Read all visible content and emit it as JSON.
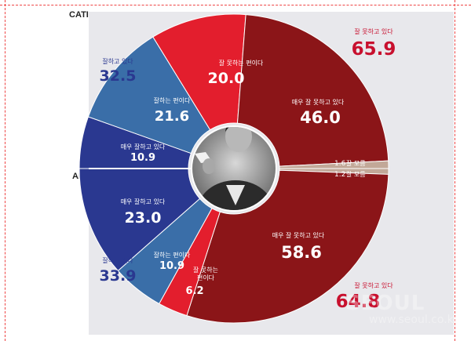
{
  "sections": {
    "top": "CATI",
    "bottom": "ARS"
  },
  "colors": {
    "darkred": "#8b1518",
    "red": "#e31e2d",
    "navy": "#2a3890",
    "blue": "#3a6ea8",
    "beige": "#c2a898",
    "panel": "#e8e8ec"
  },
  "chart_data": {
    "type": "pie",
    "charts": [
      {
        "survey": "CATI",
        "segments": [
          {
            "label": "매우 잘 못하고 있다",
            "value": 46.0,
            "color": "darkred"
          },
          {
            "label": "잘 못하는 편이다",
            "value": 20.0,
            "color": "red"
          },
          {
            "label": "잘하는 편이다",
            "value": 21.6,
            "color": "blue"
          },
          {
            "label": "매우 잘하고 있다",
            "value": 10.9,
            "color": "navy"
          },
          {
            "label": "잘 모름",
            "value": 1.6,
            "color": "beige"
          }
        ],
        "totals": [
          {
            "label": "잘 못하고 있다",
            "value": "65.9"
          },
          {
            "label": "잘하고 있다",
            "value": "32.5"
          }
        ]
      },
      {
        "survey": "ARS",
        "segments": [
          {
            "label": "매우 잘하고 있다",
            "value": 23.0,
            "color": "navy"
          },
          {
            "label": "잘하는 편이다",
            "value": 10.9,
            "color": "blue"
          },
          {
            "label": "잘 못하는 편이다",
            "value": 6.2,
            "color": "red"
          },
          {
            "label": "매우 잘 못하고 있다",
            "value": 58.6,
            "color": "darkred"
          },
          {
            "label": "잘 모름",
            "value": 1.2,
            "color": "beige"
          }
        ],
        "totals": [
          {
            "label": "잘하고 있다",
            "value": "33.9"
          },
          {
            "label": "잘 못하고 있다",
            "value": "64.8"
          }
        ]
      }
    ]
  },
  "labels": {
    "cati_verybad": {
      "label": "매우 잘 못하고 있다",
      "value": "46.0"
    },
    "cati_bad": {
      "label": "잘 못하는 편이다",
      "value": "20.0"
    },
    "cati_good": {
      "label": "잘하는 편이다",
      "value": "21.6"
    },
    "cati_verygood": {
      "label": "매우 잘하고 있다",
      "value": "10.9"
    },
    "cati_unknown": {
      "label": "잘 모름",
      "value": "1.6"
    },
    "ars_verygood": {
      "label": "매우 잘하고 있다",
      "value": "23.0"
    },
    "ars_good": {
      "label": "잘하는 편이다",
      "value": "10.9"
    },
    "ars_bad": {
      "label": "잘 못하는",
      "label2": "편이다",
      "value": "6.2"
    },
    "ars_verybad": {
      "label": "매우 잘 못하고 있다",
      "value": "58.6"
    },
    "ars_unknown": {
      "label": "잘 모름",
      "value": "1.2"
    },
    "total_cati_bad": {
      "label": "잘 못하고 있다",
      "value": "65.9"
    },
    "total_cati_good": {
      "label": "잘하고 있다",
      "value": "32.5"
    },
    "total_ars_good": {
      "label": "잘하고 있다",
      "value": "33.9"
    },
    "total_ars_bad": {
      "label": "잘 못하고 있다",
      "value": "64.8"
    }
  },
  "watermark": {
    "text": "SEOUL",
    "sub": "www.seoul.co.kr"
  }
}
